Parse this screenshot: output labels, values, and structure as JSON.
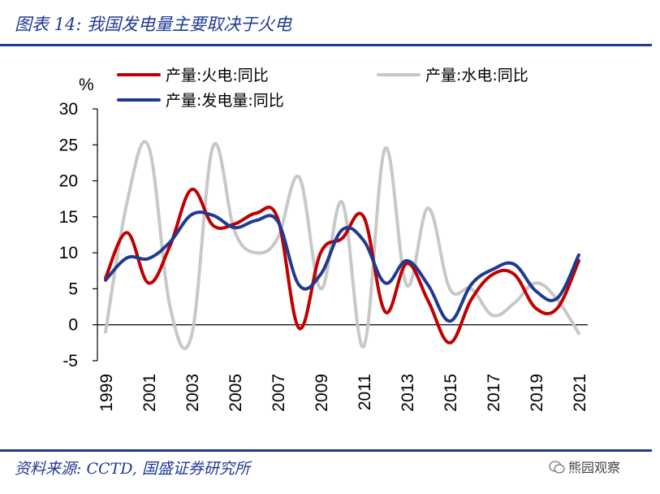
{
  "header": {
    "title": "图表 14:  我国发电量主要取决于火电"
  },
  "footer": {
    "source": "资料来源:  CCTD, 国盛证券研究所",
    "watermark": "熊园观察"
  },
  "chart_data": {
    "type": "line",
    "title": "",
    "ylabel": "%",
    "xlabel": "",
    "ylim": [
      -5,
      30
    ],
    "yticks": [
      -5,
      0,
      5,
      10,
      15,
      20,
      25,
      30
    ],
    "x": [
      1999,
      2000,
      2001,
      2002,
      2003,
      2004,
      2005,
      2006,
      2007,
      2008,
      2009,
      2010,
      2011,
      2012,
      2013,
      2014,
      2015,
      2016,
      2017,
      2018,
      2019,
      2020,
      2021
    ],
    "xtick_labels": [
      "1999",
      "2001",
      "2003",
      "2005",
      "2007",
      "2009",
      "2011",
      "2013",
      "2015",
      "2017",
      "2019",
      "2021"
    ],
    "series": [
      {
        "name": "产量:火电:同比",
        "color": "#c00000",
        "values": [
          6.5,
          12.8,
          5.8,
          11.0,
          18.8,
          13.8,
          14.0,
          15.5,
          14.8,
          -0.5,
          10.0,
          12.0,
          15.0,
          1.8,
          8.5,
          3.3,
          -2.5,
          3.5,
          7.0,
          7.0,
          2.3,
          2.3,
          8.9
        ]
      },
      {
        "name": "产量:水电:同比",
        "color": "#c8c8c8",
        "values": [
          -1.0,
          17.0,
          24.8,
          2.5,
          -1.5,
          24.8,
          13.0,
          10.0,
          12.0,
          20.5,
          5.0,
          17.0,
          -3.0,
          24.5,
          5.5,
          16.2,
          5.0,
          5.0,
          1.3,
          3.0,
          5.8,
          3.5,
          -1.2
        ]
      },
      {
        "name": "产量:发电量:同比",
        "color": "#1f3a93",
        "values": [
          6.2,
          9.3,
          9.2,
          11.5,
          15.3,
          15.2,
          13.5,
          14.5,
          14.4,
          5.5,
          7.0,
          13.2,
          11.7,
          5.8,
          8.9,
          5.5,
          0.5,
          5.6,
          7.7,
          8.4,
          4.7,
          3.7,
          9.7
        ]
      }
    ],
    "legend": {
      "position": "top",
      "entries": [
        "产量:火电:同比",
        "产量:水电:同比",
        "产量:发电量:同比"
      ]
    },
    "grid": false
  }
}
